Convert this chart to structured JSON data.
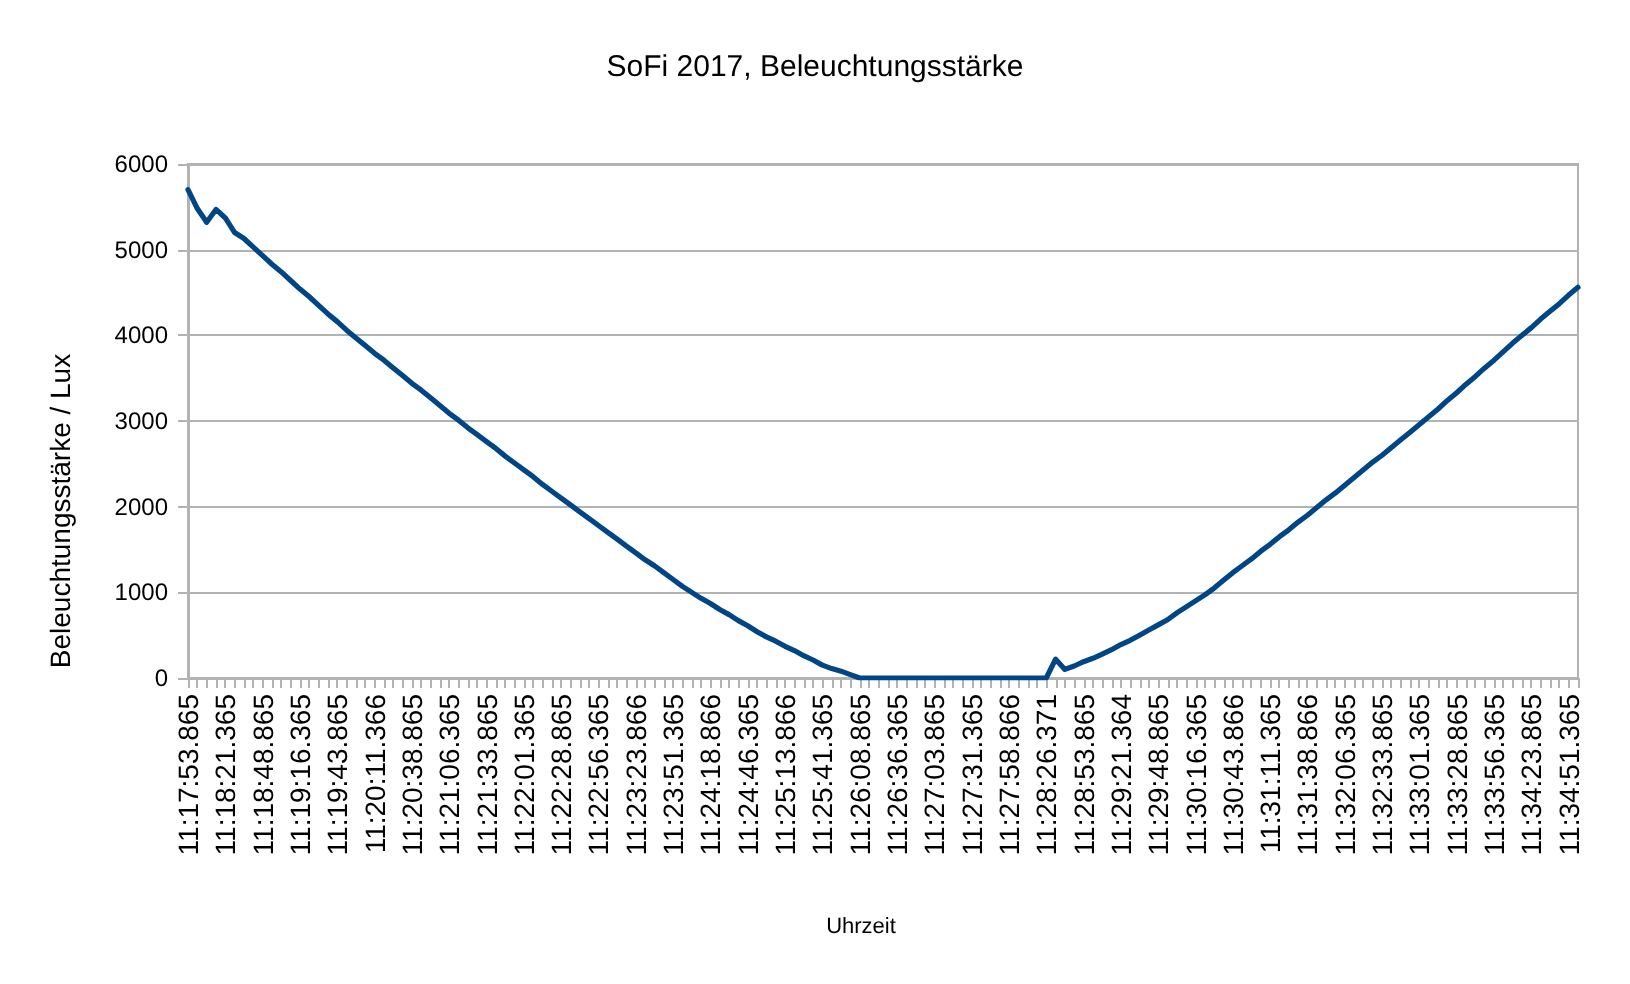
{
  "chart_data": {
    "type": "line",
    "title": "SoFi 2017, Beleuchtungsstärke",
    "xlabel": "Uhrzeit",
    "ylabel": "Beleuchtungsstärke / Lux",
    "categories": [
      "11:17:53.865",
      null,
      null,
      null,
      "11:18:21.365",
      null,
      null,
      null,
      "11:18:48.865",
      null,
      null,
      null,
      "11:19:16.365",
      null,
      null,
      null,
      "11:19:43.865",
      null,
      null,
      null,
      "11:20:11.366",
      null,
      null,
      null,
      "11:20:38.865",
      null,
      null,
      null,
      "11:21:06.365",
      null,
      null,
      null,
      "11:21:33.865",
      null,
      null,
      null,
      "11:22:01.365",
      null,
      null,
      null,
      "11:22:28.865",
      null,
      null,
      null,
      "11:22:56.365",
      null,
      null,
      null,
      "11:23:23.866",
      null,
      null,
      null,
      "11:23:51.365",
      null,
      null,
      null,
      "11:24:18.866",
      null,
      null,
      null,
      "11:24:46.365",
      null,
      null,
      null,
      "11:25:13.866",
      null,
      null,
      null,
      "11:25:41.365",
      null,
      null,
      null,
      "11:26:08.865",
      null,
      null,
      null,
      "11:26:36.365",
      null,
      null,
      null,
      "11:27:03.865",
      null,
      null,
      null,
      "11:27:31.365",
      null,
      null,
      null,
      "11:27:58.866",
      null,
      null,
      null,
      "11:28:26.371",
      null,
      null,
      null,
      "11:28:53.865",
      null,
      null,
      null,
      "11:29:21.364",
      null,
      null,
      null,
      "11:29:48.865",
      null,
      null,
      null,
      "11:30:16.365",
      null,
      null,
      null,
      "11:30:43.866",
      null,
      null,
      null,
      "11:31:11.365",
      null,
      null,
      null,
      "11:31:38.866",
      null,
      null,
      null,
      "11:32:06.365",
      null,
      null,
      null,
      "11:32:33.865",
      null,
      null,
      null,
      "11:33:01.365",
      null,
      null,
      null,
      "11:33:28.865",
      null,
      null,
      null,
      "11:33:56.365",
      null,
      null,
      null,
      "11:34:23.865",
      null,
      null,
      null,
      "11:34:51.365",
      null
    ],
    "values": [
      5700,
      5480,
      5320,
      5470,
      5370,
      5200,
      5130,
      5030,
      4930,
      4830,
      4740,
      4640,
      4540,
      4450,
      4350,
      4250,
      4160,
      4060,
      3970,
      3880,
      3790,
      3710,
      3620,
      3530,
      3440,
      3360,
      3270,
      3180,
      3090,
      3010,
      2920,
      2840,
      2760,
      2680,
      2590,
      2510,
      2430,
      2350,
      2260,
      2180,
      2100,
      2020,
      1940,
      1860,
      1780,
      1700,
      1620,
      1540,
      1460,
      1380,
      1310,
      1230,
      1150,
      1070,
      1000,
      930,
      870,
      800,
      740,
      670,
      610,
      540,
      480,
      430,
      370,
      320,
      260,
      210,
      150,
      110,
      80,
      40,
      0,
      0,
      0,
      0,
      0,
      0,
      0,
      0,
      0,
      0,
      0,
      0,
      0,
      0,
      0,
      0,
      0,
      0,
      0,
      0,
      0,
      220,
      100,
      140,
      190,
      230,
      280,
      330,
      390,
      440,
      500,
      560,
      620,
      680,
      760,
      830,
      900,
      970,
      1050,
      1140,
      1230,
      1310,
      1390,
      1480,
      1560,
      1650,
      1730,
      1820,
      1900,
      1990,
      2080,
      2160,
      2250,
      2340,
      2430,
      2520,
      2600,
      2690,
      2780,
      2870,
      2960,
      3050,
      3140,
      3240,
      3330,
      3430,
      3520,
      3620,
      3710,
      3810,
      3910,
      4000,
      4090,
      4190,
      4280,
      4370,
      4470,
      4560
    ],
    "color": "#004586",
    "ylim": [
      0,
      6000
    ],
    "yticks": [
      0,
      1000,
      2000,
      3000,
      4000,
      5000,
      6000
    ],
    "grid": "y",
    "marker": "none",
    "line_style": "solid"
  }
}
